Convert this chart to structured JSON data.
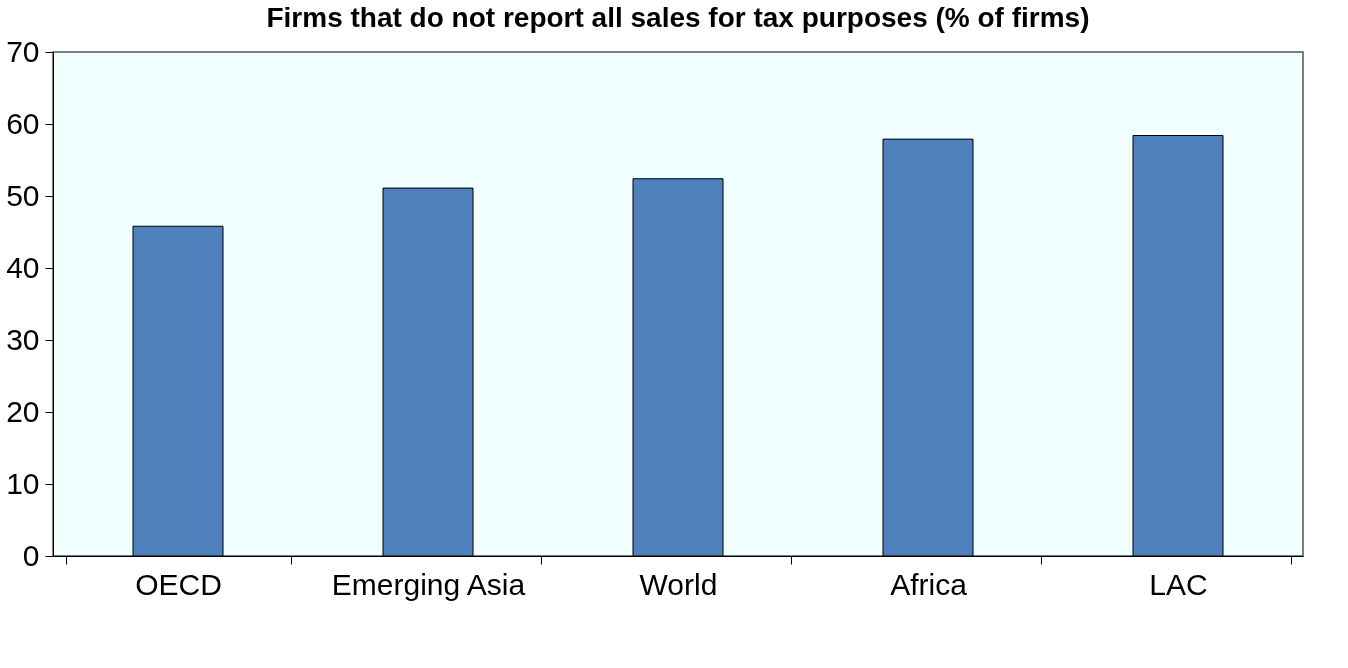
{
  "chart_data": {
    "type": "bar",
    "title": "Firms that do not report all sales for tax purposes (% of firms)",
    "categories": [
      "OECD",
      "Emerging Asia",
      "World",
      "Africa",
      "LAC"
    ],
    "series": [
      {
        "color": "#4f81bd",
        "values": [
          45.8,
          51.1,
          52.4,
          57.9,
          58.4
        ]
      }
    ],
    "ylim": [
      0,
      70
    ],
    "yticks": [
      0,
      10,
      20,
      30,
      40,
      50,
      60,
      70
    ],
    "grid": false,
    "legend": false
  }
}
